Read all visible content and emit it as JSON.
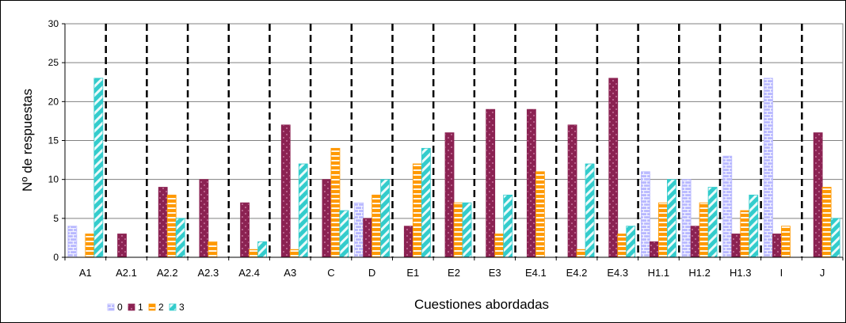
{
  "chart_data": {
    "type": "bar",
    "title": "",
    "xlabel": "Cuestiones abordadas",
    "ylabel": "Nº de respuestas",
    "ylim": [
      0,
      30
    ],
    "yticks": [
      0,
      5,
      10,
      15,
      20,
      25,
      30
    ],
    "grid": true,
    "legend_position": "bottom-left",
    "categories": [
      "A1",
      "A2.1",
      "A2.2",
      "A2.3",
      "A2.4",
      "A3",
      "C",
      "D",
      "E1",
      "E2",
      "E3",
      "E4.1",
      "E4.2",
      "E4.3",
      "H1.1",
      "H1.2",
      "H1.3",
      "I",
      "J"
    ],
    "series": [
      {
        "name": "0",
        "color": "#b8b8ff",
        "pattern": "bricks",
        "values": [
          4,
          0,
          0,
          0,
          0,
          0,
          0,
          7,
          0,
          0,
          0,
          0,
          0,
          0,
          11,
          10,
          13,
          23,
          0
        ]
      },
      {
        "name": "1",
        "color": "#8b2252",
        "pattern": "dots",
        "values": [
          0,
          3,
          9,
          10,
          7,
          17,
          10,
          5,
          4,
          16,
          19,
          19,
          17,
          23,
          2,
          4,
          3,
          3,
          16
        ]
      },
      {
        "name": "2",
        "color": "#ff9900",
        "pattern": "horizontal-stripes",
        "values": [
          3,
          0,
          8,
          2,
          1,
          1,
          14,
          8,
          12,
          7,
          3,
          11,
          1,
          3,
          7,
          7,
          6,
          4,
          9
        ]
      },
      {
        "name": "3",
        "color": "#33cccc",
        "pattern": "diagonal-stripes",
        "values": [
          23,
          0,
          5,
          0,
          2,
          12,
          6,
          10,
          14,
          7,
          8,
          0,
          12,
          4,
          10,
          9,
          8,
          0,
          5
        ]
      }
    ],
    "separators": "dashed-vertical-between-categories"
  }
}
